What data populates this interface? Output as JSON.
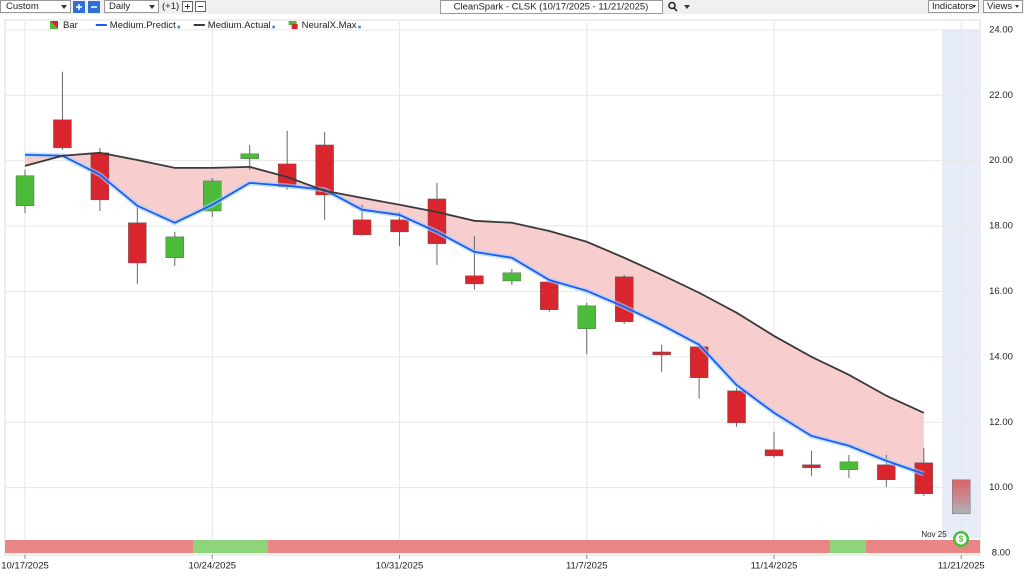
{
  "toolbar": {
    "range": "Custom",
    "interval": "Daily",
    "offset": "(+1)",
    "indicators": "Indicators",
    "views": "Views"
  },
  "chart_data": {
    "type": "candlestick",
    "title": "CleanSpark - CLSK (10/17/2025 - 11/21/2025)",
    "categories": [
      "10/17/2025",
      null,
      null,
      null,
      null,
      "10/24/2025",
      null,
      null,
      null,
      null,
      "10/31/2025",
      null,
      null,
      null,
      null,
      "11/7/2025",
      null,
      null,
      null,
      null,
      "11/14/2025",
      null,
      null,
      null,
      null,
      "11/21/2025"
    ],
    "series": [
      {
        "name": "Bar",
        "up_color": "#4cbb3a",
        "down_color": "#d9262e",
        "open": [
          18.62,
          21.25,
          20.24,
          18.1,
          17.03,
          18.46,
          20.06,
          19.9,
          20.48,
          18.19,
          18.19,
          18.83,
          16.48,
          16.32,
          16.29,
          14.86,
          16.45,
          14.15,
          14.31,
          12.96,
          11.16,
          10.7,
          10.55,
          10.7,
          10.76,
          null
        ],
        "high": [
          19.72,
          22.72,
          20.39,
          18.65,
          17.82,
          19.47,
          20.48,
          20.91,
          20.88,
          18.65,
          18.43,
          19.32,
          17.7,
          16.69,
          16.35,
          15.65,
          16.51,
          14.37,
          14.43,
          13.05,
          11.71,
          11.13,
          11.0,
          11.0,
          11.22,
          null
        ],
        "low": [
          18.4,
          20.33,
          18.46,
          16.23,
          16.78,
          18.28,
          19.72,
          19.11,
          18.19,
          17.7,
          17.39,
          16.81,
          16.05,
          16.2,
          15.38,
          14.09,
          15.01,
          13.54,
          12.72,
          11.86,
          10.91,
          10.36,
          10.3,
          10.02,
          9.75,
          null
        ],
        "close": [
          19.54,
          20.39,
          18.8,
          16.87,
          17.67,
          19.38,
          20.21,
          19.2,
          18.95,
          17.73,
          17.82,
          17.46,
          16.23,
          16.57,
          15.44,
          15.56,
          15.07,
          14.06,
          13.36,
          11.98,
          10.97,
          10.61,
          10.79,
          10.24,
          9.81,
          null
        ]
      },
      {
        "name": "Medium.Predict",
        "color": "#1b5cf5",
        "values": [
          20.18,
          20.15,
          19.57,
          18.62,
          18.1,
          18.65,
          19.32,
          19.23,
          19.11,
          18.5,
          18.34,
          17.82,
          17.21,
          17.03,
          16.35,
          16.02,
          15.53,
          14.98,
          14.37,
          13.14,
          12.29,
          11.58,
          11.28,
          10.82,
          10.42,
          null
        ]
      },
      {
        "name": "Medium.Actual",
        "color": "#3a3a3a",
        "values": [
          19.84,
          20.15,
          20.24,
          20.02,
          19.78,
          19.78,
          19.81,
          19.5,
          19.08,
          18.86,
          18.65,
          18.43,
          18.16,
          18.1,
          17.85,
          17.52,
          17.03,
          16.51,
          15.96,
          15.35,
          14.64,
          14.0,
          13.45,
          12.81,
          12.29,
          null
        ]
      },
      {
        "name": "NeuralX.Max",
        "forecast_high": 10.24,
        "forecast_low": 9.2
      }
    ],
    "fill_color": "#f6c4c4",
    "annotation": "Nov 25",
    "ylim": [
      7.94,
      24.24
    ],
    "yticks": [
      {
        "value": 8,
        "label": "8.00"
      },
      {
        "value": 10,
        "label": "10.00"
      },
      {
        "value": 12,
        "label": "12.00"
      },
      {
        "value": 14,
        "label": "14.00"
      },
      {
        "value": 16,
        "label": "16.00"
      },
      {
        "value": 18,
        "label": "18.00"
      },
      {
        "value": 20,
        "label": "20.00"
      },
      {
        "value": 22,
        "label": "22.00"
      },
      {
        "value": 24,
        "label": "24.00"
      }
    ],
    "grid": true
  }
}
